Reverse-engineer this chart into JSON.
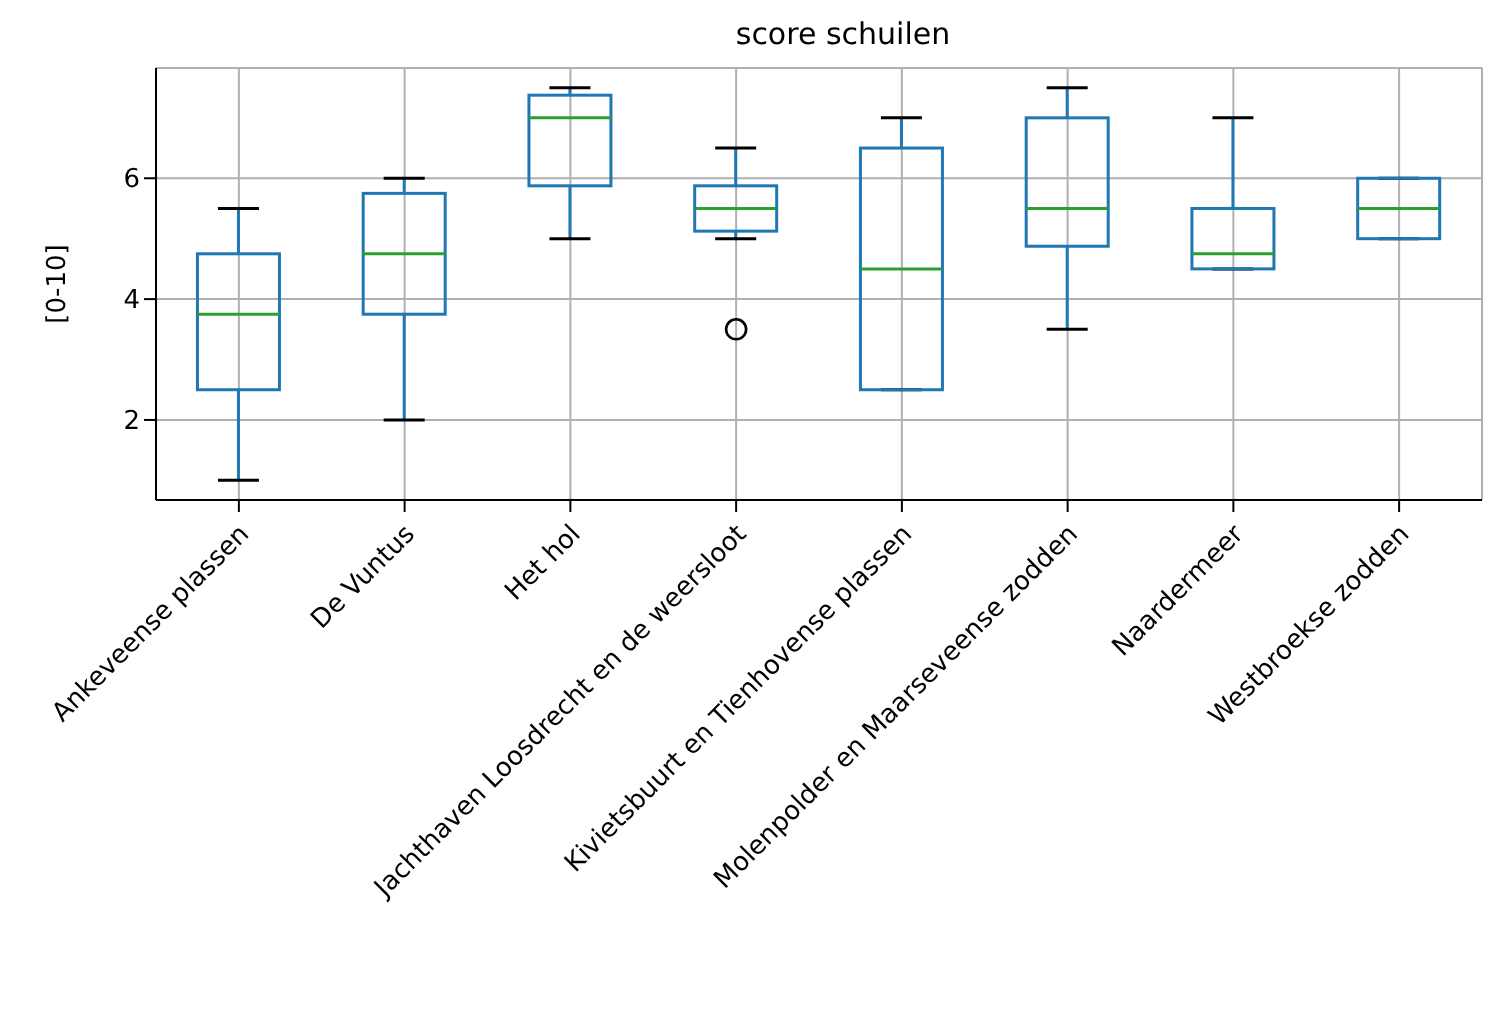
{
  "chart_data": {
    "type": "box",
    "title": "score schuilen",
    "ylabel": "[0-10]",
    "categories": [
      "Ankeveense plassen",
      "De Vuntus",
      "Het hol",
      "Jachthaven Loosdrecht en de weersloot",
      "Kivietsbuurt en Tienhovense plassen",
      "Molenpolder en Maarseveense zodden",
      "Naardermeer",
      "Westbroekse zodden"
    ],
    "series": [
      {
        "color": "#1f77b4",
        "boxes": [
          {
            "low": 1,
            "q1": 2.5,
            "median": 3.75,
            "q3": 4.75,
            "high": 5.5
          },
          {
            "low": 2,
            "q1": 3.75,
            "median": 4.75,
            "q3": 5.75,
            "high": 6
          },
          {
            "low": 5,
            "q1": 5.875,
            "median": 7,
            "q3": 7.375,
            "high": 7.5
          },
          {
            "low": 5,
            "q1": 5.125,
            "median": 5.5,
            "q3": 5.875,
            "high": 6.5,
            "outliers": [
              3.5
            ]
          },
          {
            "low": 2.5,
            "q1": 2.5,
            "median": 4.5,
            "q3": 6.5,
            "high": 7
          },
          {
            "low": 3.5,
            "q1": 4.875,
            "median": 5.5,
            "q3": 7,
            "high": 7.5
          },
          {
            "low": 4.5,
            "q1": 4.5,
            "median": 4.75,
            "q3": 5.5,
            "high": 7
          },
          {
            "low": 5,
            "q1": 5,
            "median": 5.5,
            "q3": 6,
            "high": 6
          }
        ]
      }
    ],
    "ylim": [
      0.675,
      7.825
    ],
    "yticks": [
      2,
      4,
      6
    ],
    "grid": true
  }
}
